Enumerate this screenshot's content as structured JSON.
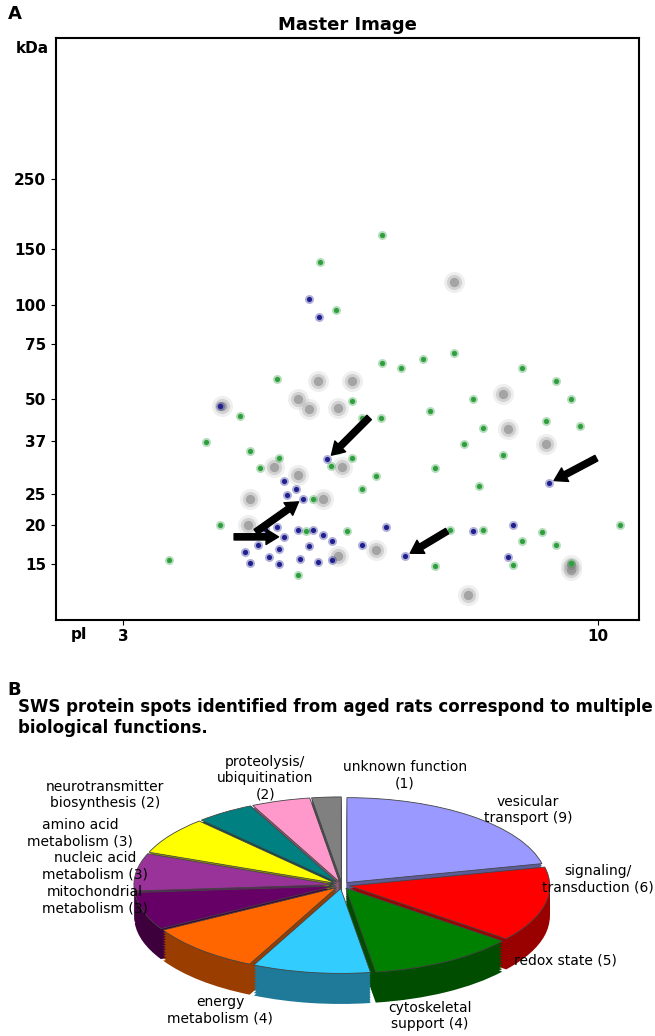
{
  "chart_data": [
    {
      "type": "scatter",
      "panel_label": "A",
      "title": "Master Image",
      "y_label": "kDa",
      "x_label": "pI",
      "log": "y",
      "xlim": [
        2,
        10.6
      ],
      "xticks": [
        3,
        10
      ],
      "ylim": [
        10,
        700
      ],
      "yticks": [
        250,
        150,
        100,
        75,
        50,
        37,
        25,
        20,
        15
      ],
      "series": [
        {
          "color": "#7f7f7f",
          "marker": "blob",
          "x": [
            4.45,
            5.87,
            6.37,
            5.73,
            6.16,
            5.58,
            5.22,
            5.58,
            6.23,
            4.87,
            5.94,
            4.84,
            6.73,
            6.16,
            9.6,
            9.6,
            8.6,
            9.24,
            8.09,
            7.88,
            8.67
          ],
          "y": [
            47.6,
            57,
            57,
            46.5,
            47,
            50,
            30.6,
            28.7,
            30.6,
            24.2,
            24.2,
            20,
            16.6,
            15.9,
            14.9,
            14.4,
            52,
            36,
            12.0,
            118,
            40.2
          ]
        },
        {
          "color": "#2e9e3e",
          "marker": "dot",
          "x": [
            6.82,
            5.9,
            6.13,
            5.27,
            6.82,
            6.37,
            7.42,
            7.88,
            8.16,
            8.88,
            9.6,
            9.38,
            4.72,
            4.22,
            4.87,
            5.01,
            5.3,
            6.16,
            6.37,
            6.52,
            6.8,
            7.09,
            7.52,
            8.02,
            8.31,
            8.6,
            9.24,
            9.74,
            6.06,
            5.8,
            6.52,
            6.73,
            7.59,
            8.24,
            4.43,
            5.7,
            6.3,
            7.81,
            8.31,
            8.88,
            9.17,
            9.38,
            10.32,
            3.67,
            5.58,
            7.59,
            9.6,
            8.74
          ],
          "y": [
            166,
            136,
            96,
            58,
            65,
            49.5,
            67,
            70,
            50,
            63,
            50,
            57,
            44.3,
            36.6,
            34.3,
            30.3,
            32.6,
            34.6,
            32.6,
            43.7,
            43.7,
            63,
            45.8,
            36.2,
            40.6,
            33.3,
            42.6,
            41.2,
            30.7,
            24.2,
            25.9,
            28.5,
            30.3,
            26.5,
            20,
            19.1,
            19.1,
            19.3,
            19.3,
            17.7,
            19.0,
            17.2,
            19.9,
            15.4,
            13.8,
            14.8,
            15.1,
            14.9
          ]
        },
        {
          "color": "#1f1f8f",
          "marker": "dot",
          "x": [
            5.73,
            5.88,
            4.43,
            6.01,
            9.28,
            5.37,
            5.55,
            5.65,
            5.41,
            5.27,
            5.37,
            5.09,
            5.58,
            5.8,
            5.94,
            6.08,
            4.98,
            5.3,
            5.73,
            4.79,
            5.15,
            5.61,
            6.08,
            7.16,
            8.67,
            8.74,
            8.16,
            5.3,
            5.87,
            6.52,
            6.87,
            4.87
          ],
          "y": [
            104,
            91,
            47.6,
            32.3,
            27.1,
            27.6,
            26,
            24.2,
            24.9,
            19.6,
            18.3,
            19.4,
            19.3,
            19.3,
            18.6,
            17.8,
            17.2,
            16.8,
            17.1,
            16.4,
            15.8,
            15.6,
            15.4,
            15.9,
            15.8,
            19.9,
            19.1,
            15.0,
            15.2,
            17.2,
            19.6,
            15.1
          ]
        }
      ],
      "arrows": [
        {
          "x": 6.01,
          "y": 32.3
        },
        {
          "x": 9.28,
          "y": 27.1
        },
        {
          "x": 5.65,
          "y": 24.2
        },
        {
          "x": 5.37,
          "y": 18.3
        },
        {
          "x": 7.16,
          "y": 15.9
        }
      ]
    },
    {
      "type": "pie",
      "panel_label": "B",
      "title": "SWS protein spots identified from aged rats correspond to multiple biological functions.",
      "categories": [
        "vesicular transport (9)",
        "signaling/ transduction (6)",
        "redox state (5)",
        "cytoskeletal support (4)",
        "energy metabolism (4)",
        "mitochondrial metabolism (3)",
        "nucleic acid metabolism (3)",
        "amino acid metabolism (3)",
        "neurotransmitter biosynthesis (2)",
        "proteolysis/ ubiquitination (2)",
        "unknown function (1)"
      ],
      "values": [
        9,
        6,
        5,
        4,
        4,
        3,
        3,
        3,
        2,
        2,
        1
      ],
      "colors": [
        "#9999ff",
        "#ff0000",
        "#008000",
        "#33ccff",
        "#ff6600",
        "#660066",
        "#993399",
        "#ffff00",
        "#008080",
        "#ff99cc",
        "#808080"
      ]
    }
  ]
}
